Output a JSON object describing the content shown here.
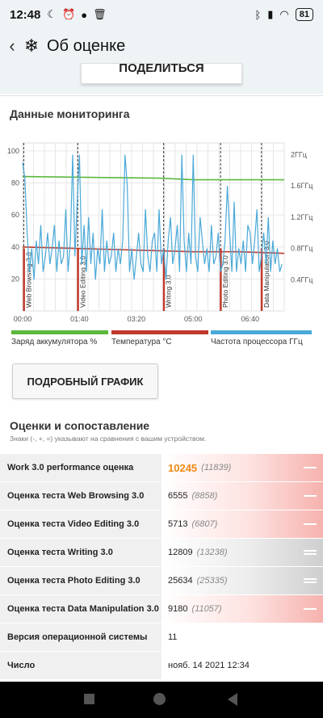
{
  "status": {
    "time": "12:48",
    "battery": "81"
  },
  "appbar": {
    "title": "Об оценке"
  },
  "share": {
    "label": "ПОДЕЛИТЬСЯ"
  },
  "monitoring": {
    "title": "Данные мониторинга",
    "detail_button": "ПОДРОБНЫЙ ГРАФИК"
  },
  "chart_data": {
    "type": "line",
    "x_ticks": [
      "00:00",
      "01:40",
      "03:20",
      "05:00",
      "06:40"
    ],
    "x_range_seconds": [
      0,
      460
    ],
    "left_axis_ticks": [
      20,
      40,
      60,
      80,
      100
    ],
    "left_range": [
      0,
      105
    ],
    "right_axis_ticks": [
      "0.4ГГц",
      "0.8ГГц",
      "1.2ГГц",
      "1.6ГГц",
      "2ГГц"
    ],
    "right_range_ghz": [
      0,
      2.15
    ],
    "grid": true,
    "markers": [
      {
        "label": "Web Browsing 3.0",
        "t": 2
      },
      {
        "label": "Video Editing 3.0",
        "t": 97
      },
      {
        "label": "Writing 3.0",
        "t": 248
      },
      {
        "label": "Photo Editing 3.0",
        "t": 348
      },
      {
        "label": "Data Manipulation 3.0",
        "t": 420
      }
    ],
    "series": [
      {
        "name": "Заряд аккумулятора %",
        "color": "#5cb83c",
        "axis": "left",
        "x": [
          0,
          240,
          300,
          460
        ],
        "y": [
          84,
          83,
          82,
          82
        ]
      },
      {
        "name": "Температура °C",
        "color": "#c0392b",
        "axis": "left",
        "x": [
          0,
          100,
          200,
          300,
          380,
          460
        ],
        "y": [
          40,
          39,
          38,
          37,
          37,
          36
        ]
      },
      {
        "name": "Частота процессора ГГц",
        "color": "#4aa9d8",
        "axis": "right",
        "x": [
          0,
          4,
          8,
          12,
          16,
          20,
          24,
          28,
          32,
          36,
          40,
          44,
          48,
          52,
          56,
          60,
          64,
          68,
          72,
          76,
          80,
          84,
          88,
          92,
          96,
          100,
          104,
          108,
          112,
          116,
          120,
          124,
          128,
          132,
          136,
          140,
          144,
          148,
          152,
          156,
          160,
          164,
          168,
          172,
          176,
          180,
          184,
          188,
          192,
          196,
          200,
          204,
          208,
          212,
          216,
          220,
          224,
          228,
          232,
          236,
          240,
          244,
          248,
          252,
          256,
          260,
          264,
          268,
          272,
          276,
          280,
          284,
          288,
          292,
          296,
          300,
          304,
          308,
          312,
          316,
          320,
          324,
          328,
          332,
          336,
          340,
          344,
          348,
          352,
          356,
          360,
          364,
          368,
          372,
          376,
          380,
          384,
          388,
          392,
          396,
          400,
          404,
          408,
          412,
          416,
          420,
          424,
          428,
          432,
          436,
          440,
          444,
          448,
          452,
          456
        ],
        "y": [
          1.9,
          1.7,
          1.0,
          0.5,
          0.8,
          0.4,
          0.9,
          0.6,
          1.1,
          0.5,
          0.7,
          1.0,
          0.6,
          0.8,
          1.1,
          0.5,
          0.9,
          0.6,
          0.7,
          1.3,
          0.5,
          0.9,
          2.0,
          0.7,
          1.4,
          2.0,
          0.6,
          1.1,
          0.5,
          1.2,
          0.6,
          1.0,
          0.4,
          0.8,
          0.6,
          1.3,
          0.5,
          0.9,
          0.6,
          0.7,
          1.0,
          0.5,
          0.8,
          0.6,
          0.9,
          2.0,
          1.6,
          0.5,
          0.8,
          0.4,
          0.7,
          1.0,
          0.6,
          0.5,
          1.3,
          0.7,
          0.5,
          0.9,
          1.0,
          0.5,
          1.3,
          0.6,
          0.8,
          0.4,
          0.9,
          1.2,
          0.6,
          0.8,
          1.1,
          0.5,
          2.0,
          0.9,
          0.5,
          1.0,
          0.6,
          2.0,
          0.7,
          0.5,
          1.2,
          0.9,
          0.6,
          0.8,
          0.5,
          1.1,
          0.6,
          0.7,
          1.0,
          0.5,
          0.6,
          0.9,
          1.6,
          1.0,
          0.5,
          1.4,
          0.5,
          0.8,
          0.6,
          0.9,
          0.5,
          1.1,
          1.0,
          0.6,
          0.9,
          1.3,
          0.5,
          0.7,
          1.0,
          0.6,
          1.2,
          0.5,
          0.9,
          0.6,
          0.8,
          0.5,
          0.6
        ]
      }
    ]
  },
  "scores": {
    "title": "Оценки и сопоставление",
    "note": "Знаки (-, +, =) указывают на сравнения с вашим устройством.",
    "rows": [
      {
        "label": "Work 3.0 performance оценка",
        "value": "10245",
        "ref": "(11839)",
        "mark": "minus"
      },
      {
        "label": "Оценка теста Web Browsing 3.0",
        "value": "6555",
        "ref": "(8858)",
        "mark": "minus"
      },
      {
        "label": "Оценка теста Video Editing 3.0",
        "value": "5713",
        "ref": "(6807)",
        "mark": "minus"
      },
      {
        "label": "Оценка теста Writing 3.0",
        "value": "12809",
        "ref": "(13238)",
        "mark": "equal"
      },
      {
        "label": "Оценка теста Photo Editing 3.0",
        "value": "25634",
        "ref": "(25335)",
        "mark": "equal"
      },
      {
        "label": "Оценка теста Data Manipulation 3.0",
        "value": "9180",
        "ref": "(11057)",
        "mark": "minus"
      },
      {
        "label": "Версия операционной системы",
        "value": "11"
      },
      {
        "label": "Число",
        "value": "нояб. 14 2021 12:34"
      }
    ]
  }
}
